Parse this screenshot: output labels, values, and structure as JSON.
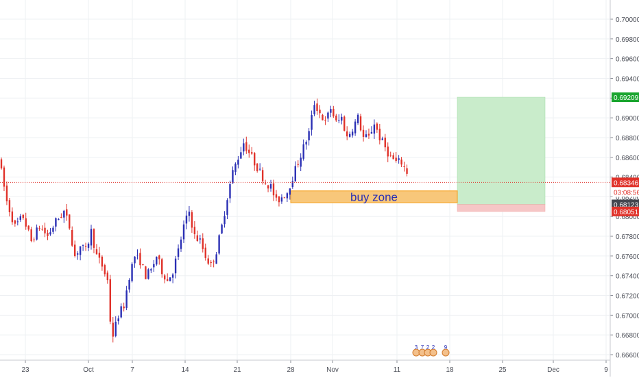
{
  "chart_data": {
    "type": "candlestick",
    "instrument_hint": "AUD/USD-style FX pair, 4H candles",
    "x_tick_labels": [
      "23",
      "Oct",
      "7",
      "14",
      "21",
      "28",
      "Nov",
      "11",
      "18",
      "25",
      "Dec",
      "9"
    ],
    "y_tick_labels": [
      "0.70000",
      "0.69800",
      "0.69600",
      "0.69400",
      "0.69200",
      "0.69000",
      "0.68800",
      "0.68600",
      "0.68400",
      "0.68200",
      "0.68000",
      "0.67800",
      "0.67600",
      "0.67400",
      "0.67200",
      "0.67000",
      "0.66800",
      "0.66600"
    ],
    "ylim": [
      0.6656,
      0.7013
    ],
    "grid": true,
    "up_color": "#2a2fb4",
    "down_color": "#e0322a",
    "price_path": [
      [
        0,
        0.686
      ],
      [
        3,
        0.6815
      ],
      [
        6,
        0.679
      ],
      [
        9,
        0.68
      ],
      [
        12,
        0.6775
      ],
      [
        15,
        0.679
      ],
      [
        18,
        0.678
      ],
      [
        21,
        0.6795
      ],
      [
        24,
        0.6805
      ],
      [
        26,
        0.679
      ],
      [
        28,
        0.676
      ],
      [
        30,
        0.677
      ],
      [
        32,
        0.6765
      ],
      [
        34,
        0.6785
      ],
      [
        36,
        0.676
      ],
      [
        38,
        0.675
      ],
      [
        40,
        0.6735
      ],
      [
        41,
        0.6695
      ],
      [
        42,
        0.668
      ],
      [
        44,
        0.67
      ],
      [
        46,
        0.671
      ],
      [
        48,
        0.674
      ],
      [
        50,
        0.676
      ],
      [
        52,
        0.6755
      ],
      [
        54,
        0.674
      ],
      [
        56,
        0.6745
      ],
      [
        58,
        0.676
      ],
      [
        60,
        0.6745
      ],
      [
        62,
        0.6735
      ],
      [
        64,
        0.6745
      ],
      [
        66,
        0.6765
      ],
      [
        68,
        0.679
      ],
      [
        70,
        0.6805
      ],
      [
        72,
        0.678
      ],
      [
        74,
        0.6775
      ],
      [
        76,
        0.676
      ],
      [
        78,
        0.675
      ],
      [
        80,
        0.6765
      ],
      [
        82,
        0.679
      ],
      [
        84,
        0.682
      ],
      [
        86,
        0.6845
      ],
      [
        88,
        0.686
      ],
      [
        90,
        0.6875
      ],
      [
        92,
        0.6865
      ],
      [
        94,
        0.6855
      ],
      [
        96,
        0.6845
      ],
      [
        98,
        0.6835
      ],
      [
        100,
        0.683
      ],
      [
        102,
        0.6815
      ],
      [
        104,
        0.682
      ],
      [
        106,
        0.6825
      ],
      [
        108,
        0.684
      ],
      [
        110,
        0.6855
      ],
      [
        112,
        0.687
      ],
      [
        114,
        0.6885
      ],
      [
        116,
        0.6915
      ],
      [
        118,
        0.6905
      ],
      [
        120,
        0.6895
      ],
      [
        122,
        0.691
      ],
      [
        124,
        0.6895
      ],
      [
        126,
        0.69
      ],
      [
        128,
        0.688
      ],
      [
        130,
        0.689
      ],
      [
        132,
        0.69
      ],
      [
        134,
        0.688
      ],
      [
        136,
        0.688
      ],
      [
        138,
        0.6895
      ],
      [
        140,
        0.688
      ],
      [
        142,
        0.687
      ],
      [
        144,
        0.686
      ],
      [
        146,
        0.6855
      ],
      [
        148,
        0.6855
      ],
      [
        150,
        0.6845
      ]
    ],
    "current_price": "0.68346",
    "countdown": "03:08:56",
    "zone_price": "0.68123",
    "take_profit": "0.69209",
    "stop_loss": "0.68051",
    "buy_zone": {
      "label": "buy zone",
      "low": 0.6814,
      "high": 0.6826,
      "fill": "#f8c77a",
      "stroke": "#f59e1b",
      "text_color": "#2a2fb4"
    },
    "position": {
      "entry": 0.68123,
      "target": 0.69209,
      "stop": 0.68051,
      "profit_fill": "#c9eccb",
      "loss_fill": "#f6c6c6"
    },
    "label_colors": {
      "current": "#e0322a",
      "countdown": "#e0322a",
      "zone": "#43464f",
      "tp": "#1aa52f",
      "sl": "#e0322a"
    },
    "events_label": [
      "3",
      "7",
      "2",
      "2",
      "9"
    ]
  }
}
